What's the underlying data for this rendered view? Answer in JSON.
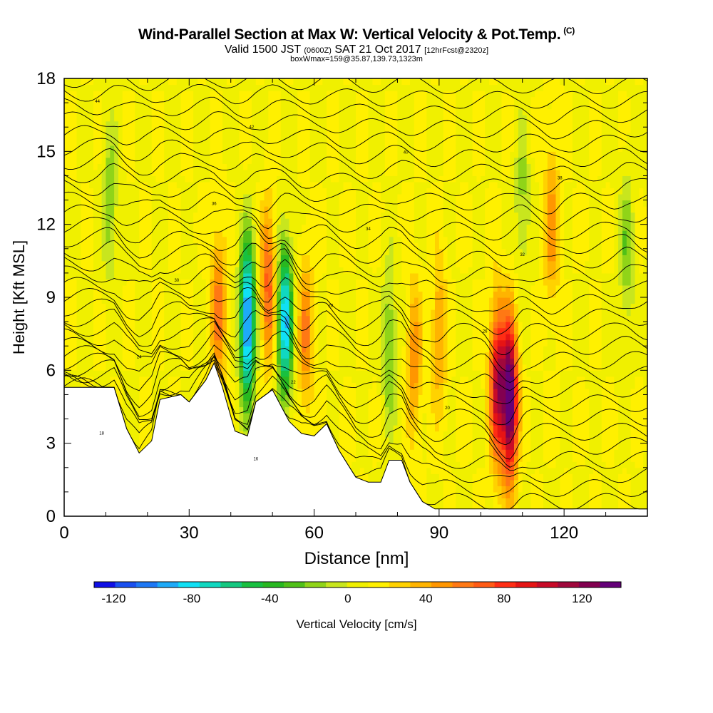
{
  "chart_data": {
    "type": "heatmap",
    "title": "Wind-Parallel Section at Max W: Vertical Velocity & Pot.Temp.",
    "title_mark": "(C)",
    "subtitle": {
      "valid": "Valid 1500 JST",
      "utc": "(0600Z)",
      "date": "SAT 21 Oct 2017",
      "fcst": "[12hrFcst@2320z]"
    },
    "subtitle2": "boxWmax=159@35.87,139.73,1323m",
    "xlabel": "Distance [nm]",
    "ylabel": "Height [Kft MSL]",
    "xlim": [
      0,
      140
    ],
    "ylim": [
      0,
      18
    ],
    "x_ticks": [
      "0",
      "30",
      "60",
      "90",
      "120"
    ],
    "y_ticks": [
      "0",
      "3",
      "6",
      "9",
      "12",
      "15",
      "18"
    ],
    "colorbar": {
      "label": "Vertical Velocity [cm/s]",
      "range": [
        -130,
        140
      ],
      "tick_labels": [
        "-120",
        "-80",
        "-40",
        "0",
        "40",
        "80",
        "120"
      ],
      "colors": [
        "#1010e6",
        "#1a50f0",
        "#1e78f5",
        "#1eaaf8",
        "#10e0f5",
        "#10d8c0",
        "#14c880",
        "#18c040",
        "#28b820",
        "#50c018",
        "#90d418",
        "#c8e61e",
        "#f0f000",
        "#fff000",
        "#ffd200",
        "#ffb400",
        "#ff9600",
        "#ff7814",
        "#ff5a14",
        "#ff2d14",
        "#e61414",
        "#c80a28",
        "#a0083c",
        "#820050",
        "#640078"
      ]
    },
    "terrain_kft": [
      [
        0,
        5.3
      ],
      [
        12,
        5.3
      ],
      [
        15,
        3.6
      ],
      [
        18,
        2.6
      ],
      [
        21,
        3.1
      ],
      [
        23,
        4.8
      ],
      [
        28,
        5.0
      ],
      [
        30,
        4.7
      ],
      [
        34,
        5.6
      ],
      [
        36,
        6.3
      ],
      [
        38,
        5.3
      ],
      [
        41,
        3.5
      ],
      [
        44,
        3.3
      ],
      [
        46,
        4.7
      ],
      [
        50,
        5.2
      ],
      [
        54,
        3.9
      ],
      [
        57,
        3.4
      ],
      [
        60,
        3.3
      ],
      [
        63,
        3.8
      ],
      [
        66,
        2.7
      ],
      [
        70,
        1.6
      ],
      [
        73,
        1.4
      ],
      [
        76,
        1.4
      ],
      [
        78,
        2.3
      ],
      [
        81,
        2.3
      ],
      [
        83,
        1.4
      ],
      [
        86,
        0.6
      ],
      [
        89,
        0.3
      ],
      [
        140,
        0.3
      ]
    ],
    "theta_contour_labels": [
      "44",
      "42",
      "40",
      "38",
      "36",
      "34",
      "32",
      "30",
      "28",
      "26",
      "24",
      "22",
      "20",
      "18",
      "16"
    ],
    "features": [
      {
        "x": 44,
        "z": 8.0,
        "w": -120
      },
      {
        "x": 53,
        "z": 8.0,
        "w": -100
      },
      {
        "x": 49,
        "z": 9.5,
        "w": 60
      },
      {
        "x": 58,
        "z": 7.5,
        "w": 45
      },
      {
        "x": 37,
        "z": 8.5,
        "w": 50
      },
      {
        "x": 78,
        "z": 7.0,
        "w": -35
      },
      {
        "x": 84,
        "z": 6.5,
        "w": 40
      },
      {
        "x": 90,
        "z": 7.5,
        "w": 35
      },
      {
        "x": 104,
        "z": 5.5,
        "w": 100
      },
      {
        "x": 107,
        "z": 4.8,
        "w": 140
      },
      {
        "x": 117,
        "z": 12.0,
        "w": 40
      },
      {
        "x": 11,
        "z": 13.0,
        "w": -30
      },
      {
        "x": 135,
        "z": 11.0,
        "w": -30
      },
      {
        "x": 110,
        "z": 13.0,
        "w": -25
      }
    ]
  }
}
